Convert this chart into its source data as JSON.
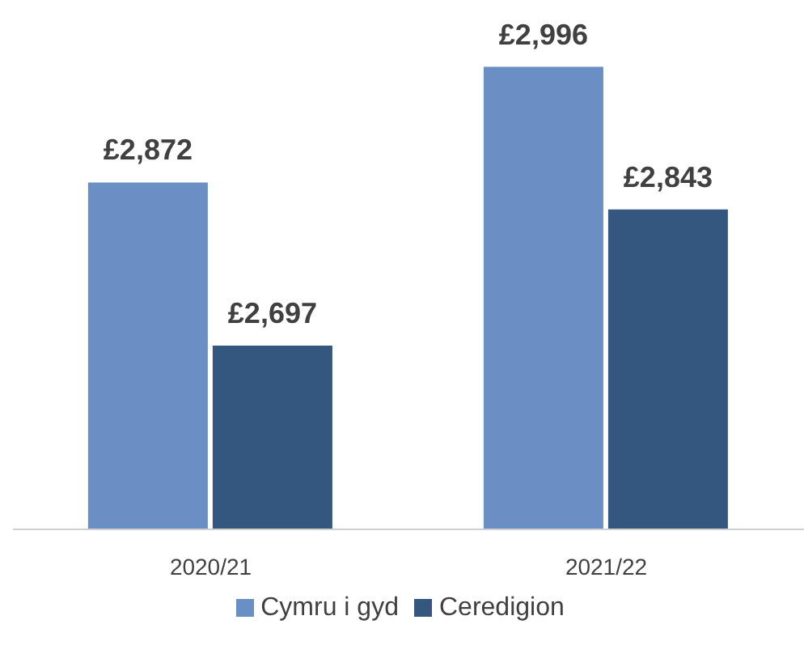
{
  "chart_data": {
    "type": "bar",
    "categories": [
      "2020/21",
      "2021/22"
    ],
    "series": [
      {
        "name": "Cymru i gyd",
        "color": "#6a8fc4",
        "values": [
          2872,
          2996
        ],
        "value_labels": [
          "£2,872",
          "£2,996"
        ]
      },
      {
        "name": "Ceredigion",
        "color": "#34577f",
        "values": [
          2697,
          2843
        ],
        "value_labels": [
          "£2,697",
          "£2,843"
        ]
      }
    ],
    "ylim": [
      2500,
      3000
    ],
    "tick_labels": "x",
    "grid": false,
    "legend": "bottom"
  }
}
